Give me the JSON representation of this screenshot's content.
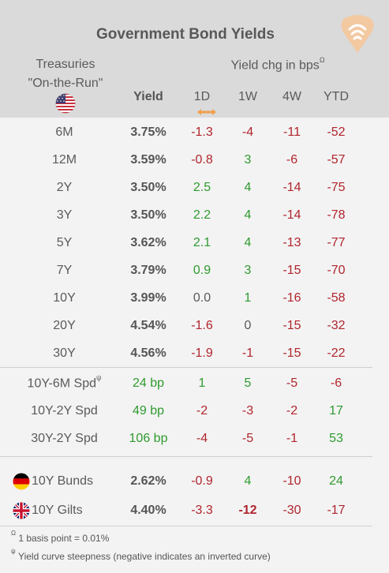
{
  "title": "Government Bond Yields",
  "header": {
    "treasuries_line1": "Treasuries",
    "treasuries_line2": "\"On-the-Run\"",
    "group_label": "Yield chg in bps",
    "group_symbol": "Ω",
    "col_yield": "Yield",
    "col_1d": "1D",
    "col_1w": "1W",
    "col_4w": "4W",
    "col_ytd": "YTD"
  },
  "icons": {
    "logo": "logo-icon",
    "us_flag": "us-flag-icon",
    "sort": "sort-arrow-icon",
    "de_flag": "germany-flag-icon",
    "uk_flag": "uk-flag-icon"
  },
  "colors": {
    "positive": "#2f9a2f",
    "negative": "#b1252d",
    "accent": "#f0a04b",
    "header_bg": "#dadada",
    "body_bg": "#f3f3f3"
  },
  "chart_data": {
    "type": "table",
    "columns": [
      "",
      "Yield",
      "1D",
      "1W",
      "4W",
      "YTD"
    ],
    "treasuries": [
      {
        "label": "6M",
        "yield": "3.75%",
        "d1": "-1.3",
        "w1": "-4",
        "w4": "-11",
        "ytd": "-52"
      },
      {
        "label": "12M",
        "yield": "3.59%",
        "d1": "-0.8",
        "w1": "3",
        "w4": "-6",
        "ytd": "-57"
      },
      {
        "label": "2Y",
        "yield": "3.50%",
        "d1": "2.5",
        "w1": "4",
        "w4": "-14",
        "ytd": "-75"
      },
      {
        "label": "3Y",
        "yield": "3.50%",
        "d1": "2.2",
        "w1": "4",
        "w4": "-14",
        "ytd": "-78"
      },
      {
        "label": "5Y",
        "yield": "3.62%",
        "d1": "2.1",
        "w1": "4",
        "w4": "-13",
        "ytd": "-77"
      },
      {
        "label": "7Y",
        "yield": "3.79%",
        "d1": "0.9",
        "w1": "3",
        "w4": "-15",
        "ytd": "-70"
      },
      {
        "label": "10Y",
        "yield": "3.99%",
        "d1": "0.0",
        "w1": "1",
        "w4": "-16",
        "ytd": "-58"
      },
      {
        "label": "20Y",
        "yield": "4.54%",
        "d1": "-1.6",
        "w1": "0",
        "w4": "-15",
        "ytd": "-32"
      },
      {
        "label": "30Y",
        "yield": "4.56%",
        "d1": "-1.9",
        "w1": "-1",
        "w4": "-15",
        "ytd": "-22"
      }
    ],
    "spreads": [
      {
        "label": "10Y-6M Spd",
        "symbol": "ψ",
        "yield": "24 bp",
        "d1": "1",
        "w1": "5",
        "w4": "-5",
        "ytd": "-6"
      },
      {
        "label": "10Y-2Y Spd",
        "symbol": "",
        "yield": "49 bp",
        "d1": "-2",
        "w1": "-3",
        "w4": "-2",
        "ytd": "17"
      },
      {
        "label": "30Y-2Y Spd",
        "symbol": "",
        "yield": "106 bp",
        "d1": "-4",
        "w1": "-5",
        "w4": "-1",
        "ytd": "53"
      }
    ],
    "international": [
      {
        "label": "10Y Bunds",
        "flag": "germany-flag-icon",
        "yield": "2.62%",
        "d1": "-0.9",
        "w1": "4",
        "w4": "-10",
        "ytd": "24"
      },
      {
        "label": "10Y Gilts",
        "flag": "uk-flag-icon",
        "yield": "4.40%",
        "d1": "-3.3",
        "w1": "-12",
        "w4": "-30",
        "ytd": "-17",
        "w1_emphasis": true
      }
    ]
  },
  "footnotes": [
    {
      "symbol": "Ω",
      "text": " 1 basis point = 0.01%"
    },
    {
      "symbol": "ψ",
      "text": " Yield curve steepness (negative indicates an inverted curve)"
    }
  ]
}
